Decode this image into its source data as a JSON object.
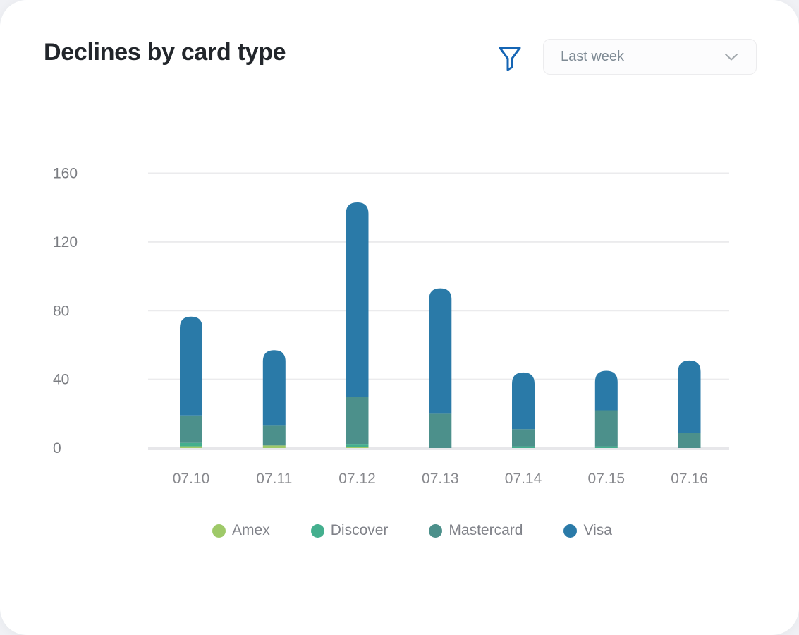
{
  "header": {
    "title": "Declines by card type",
    "filter_icon": "funnel-filter-icon",
    "filter_color": "#1565B4",
    "date_range": {
      "value": "Last week",
      "chevron_icon": "chevron-down-icon"
    }
  },
  "chart_data": {
    "type": "bar",
    "stacked": true,
    "title": "Declines by card type",
    "categories": [
      "07.10",
      "07.11",
      "07.12",
      "07.13",
      "07.14",
      "07.15",
      "07.16"
    ],
    "series": [
      {
        "name": "Amex",
        "color": "#9EC968",
        "values": [
          1,
          1.5,
          0.5,
          0,
          0,
          0,
          0
        ]
      },
      {
        "name": "Discover",
        "color": "#44AF8E",
        "values": [
          2,
          0,
          1.5,
          0,
          1,
          1,
          0
        ]
      },
      {
        "name": "Mastercard",
        "color": "#4C908B",
        "values": [
          16,
          11.5,
          28,
          20,
          10,
          21,
          9
        ]
      },
      {
        "name": "Visa",
        "color": "#2A7AA8",
        "values": [
          57.5,
          44,
          113,
          73,
          33,
          23,
          42
        ]
      }
    ],
    "totals": [
      76.5,
      57,
      143,
      93,
      44,
      45,
      51
    ],
    "y_ticks": [
      0,
      40,
      80,
      120,
      160
    ],
    "ylim": [
      0,
      160
    ],
    "xlabel": "",
    "ylabel": "",
    "grid": true,
    "grid_color": "#EBEBED",
    "baseline_color": "#E7E7EA",
    "tick_label_color": "#87888D",
    "legend_position": "bottom"
  }
}
